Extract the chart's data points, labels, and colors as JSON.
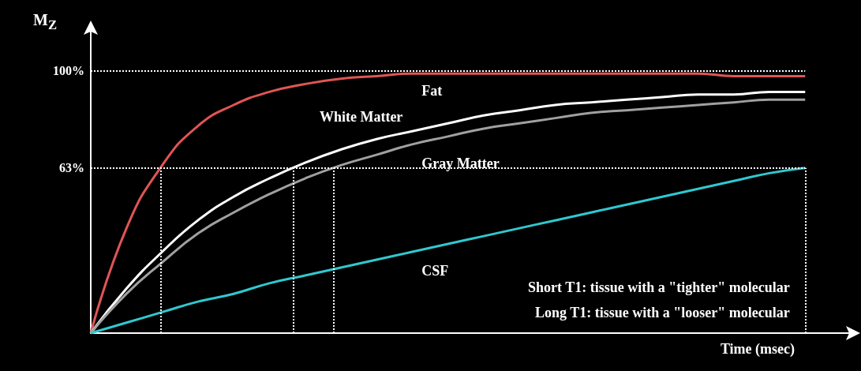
{
  "chart_data": {
    "type": "line",
    "xlabel": "Time (msec)",
    "ylabel": "M$_{Z}$",
    "categories": [
      null,
      null,
      null,
      null,
      null,
      null,
      null,
      null,
      null,
      null,
      null,
      null,
      null,
      null,
      null,
      null,
      null,
      null,
      null,
      null,
      null
    ],
    "series": [
      {
        "name": "Fat",
        "color": "#e05555",
        "values": [
          0,
          40,
          64,
          79,
          87,
          92,
          95,
          97,
          98,
          99,
          99,
          99,
          99,
          99,
          99,
          99,
          99,
          99,
          98,
          98,
          98
        ]
      },
      {
        "name": "White Matter",
        "color": "#ffffff",
        "values": [
          0,
          17,
          31,
          43,
          52,
          59,
          65,
          70,
          74,
          77,
          80,
          83,
          85,
          87,
          88,
          89,
          90,
          91,
          91,
          92,
          92
        ]
      },
      {
        "name": "Gray Matter",
        "color": "#a0a0a0",
        "values": [
          0,
          15,
          27,
          38,
          46,
          53,
          59,
          64,
          68,
          72,
          75,
          78,
          80,
          82,
          84,
          85,
          86,
          87,
          88,
          89,
          89
        ]
      },
      {
        "name": "CSF",
        "color": "#30c8d0",
        "values": [
          0,
          4,
          8,
          12,
          15,
          19,
          22,
          25,
          28,
          31,
          34,
          37,
          40,
          43,
          46,
          49,
          52,
          55,
          58,
          61,
          63
        ]
      }
    ],
    "ylim": [
      0,
      115
    ],
    "yticks": [
      {
        "value": 63,
        "label": "63%"
      },
      {
        "value": 100,
        "label": "100%"
      }
    ],
    "tick_labels": "y",
    "grid": false,
    "legend": false,
    "marker": "none",
    "line_style": "solid",
    "ref_lines": [
      {
        "axis": "y",
        "value": 63,
        "label": null,
        "line_style": "dotted"
      },
      {
        "axis": "y",
        "value": 100,
        "label": null,
        "line_style": "dotted"
      }
    ],
    "annotations": [
      "Short T1: tissue with a \"tighter\" molecular",
      "Long T1: tissue with a \"looser\" molecular"
    ]
  }
}
